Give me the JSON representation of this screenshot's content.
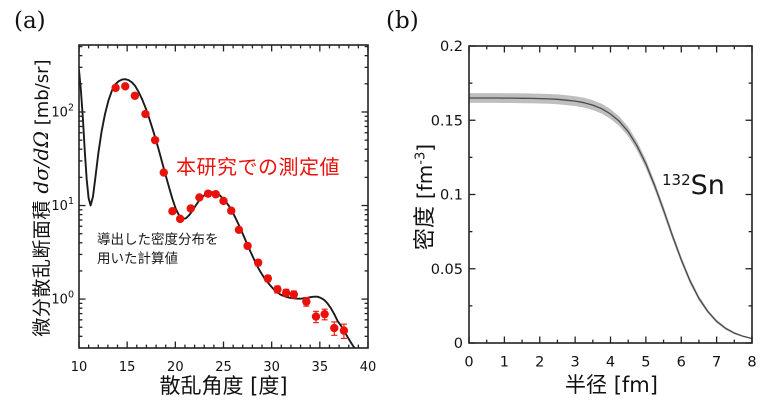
{
  "figure": {
    "panel_a_label": "(a)",
    "panel_b_label": "(b)"
  },
  "panel_a": {
    "ylabel_cjk": "微分散乱断面積 ",
    "ylabel_math": "dσ/dΩ",
    "ylabel_unit": " [mb/sr]",
    "xlabel": "散乱角度 [度]",
    "measured_label": "本研究での測定値",
    "calc_label_line1": "導出した密度分布を",
    "calc_label_line2": "用いた計算値"
  },
  "panel_b": {
    "ylabel_cjk": "密度 ",
    "ylabel_unit_prefix": "[fm",
    "ylabel_unit_sup": "-3",
    "ylabel_unit_suffix": "]",
    "xlabel": "半径 [fm]",
    "nuclide_mass": "132",
    "nuclide_symbol": "Sn"
  },
  "colors": {
    "measured_red": "#e8120b",
    "curve_black": "#1a1a1a",
    "density_line": "#4a4a4a",
    "band_gray": "#b3b3b3",
    "axis": "#222222"
  },
  "chart_data": [
    {
      "type": "line",
      "title": "elastic scattering differential cross section",
      "xlabel": "散乱角度 [度]",
      "ylabel": "微分散乱断面積 dσ/dΩ [mb/sr]",
      "x_scale": "linear",
      "y_scale": "log",
      "xlim": [
        10,
        40
      ],
      "ylim": [
        0.3,
        520
      ],
      "x_ticks": [
        10,
        15,
        20,
        25,
        30,
        35,
        40
      ],
      "x_minor_step": 1,
      "y_tick_exponents": [
        0,
        1,
        2
      ],
      "grid": false,
      "legend": "none",
      "series": [
        {
          "name": "calculation-curve",
          "label": "導出した密度分布を用いた計算値",
          "type": "line",
          "color": "#1a1a1a",
          "x": [
            10,
            10.2,
            10.4,
            10.6,
            10.8,
            11,
            11.2,
            11.45,
            11.7,
            12,
            12.35,
            12.7,
            13.05,
            13.4,
            13.75,
            14.1,
            14.45,
            14.8,
            15.15,
            15.5,
            15.85,
            16.2,
            16.55,
            16.9,
            17.25,
            17.6,
            17.95,
            18.3,
            18.65,
            19,
            19.35,
            19.7,
            20.05,
            20.4,
            20.75,
            21.1,
            21.45,
            21.8,
            22.15,
            22.5,
            22.85,
            23.2,
            23.55,
            23.9,
            24.25,
            24.6,
            24.95,
            25.3,
            25.65,
            26,
            26.35,
            26.7,
            27.05,
            27.4,
            27.75,
            28.1,
            28.45,
            28.8,
            29.15,
            29.5,
            29.85,
            30.2,
            30.55,
            30.9,
            31.25,
            31.6,
            31.95,
            32.3,
            32.65,
            33,
            33.35,
            33.7,
            34.05,
            34.4,
            34.75,
            35.1,
            35.45,
            35.8,
            36.15,
            36.5,
            36.85,
            37.2,
            37.55,
            37.9,
            38.25,
            38.6,
            38.95
          ],
          "y": [
            280,
            170,
            85,
            38,
            19,
            12,
            10,
            12.5,
            20,
            36,
            62,
            95,
            132,
            168,
            196,
            213,
            222,
            224,
            219,
            207,
            188,
            163,
            137,
            111,
            88,
            68,
            51.5,
            38.5,
            28.5,
            21,
            15.6,
            11.8,
            9.2,
            7.8,
            7.2,
            7.3,
            7.9,
            8.9,
            10.1,
            11.4,
            12.5,
            13.3,
            13.8,
            13.9,
            13.6,
            12.9,
            11.9,
            10.8,
            9.6,
            8.3,
            7,
            5.85,
            4.85,
            4,
            3.3,
            2.75,
            2.3,
            1.98,
            1.73,
            1.55,
            1.4,
            1.28,
            1.19,
            1.12,
            1.08,
            1.05,
            1.03,
            1.02,
            1.01,
            1.01,
            1.02,
            1.03,
            1.05,
            1.06,
            1.06,
            1.03,
            0.98,
            0.9,
            0.8,
            0.69,
            0.58,
            0.52,
            0.45,
            0.39,
            0.34,
            0.3,
            0.26
          ]
        },
        {
          "name": "measured-points",
          "label": "本研究での測定値",
          "type": "scatter",
          "color": "#e8120b",
          "x": [
            13.8,
            14.8,
            15.8,
            16.9,
            17.9,
            18.8,
            19.7,
            20.5,
            21.6,
            22.5,
            23.4,
            24.2,
            25,
            25.8,
            26.6,
            27.5,
            28.6,
            29.6,
            30.6,
            31.5,
            32.3,
            33.6,
            34.6,
            35.5,
            36.5,
            37.5
          ],
          "y": [
            181,
            188,
            149,
            95,
            50,
            22.5,
            8.7,
            7.2,
            9.3,
            12.2,
            13.4,
            13.2,
            11.2,
            8.8,
            5.5,
            3.7,
            2.45,
            1.66,
            1.27,
            1.17,
            1.12,
            0.94,
            0.65,
            0.69,
            0.49,
            0.46
          ],
          "yerr": [
            9,
            9,
            7,
            5,
            3,
            1.2,
            0.5,
            0.4,
            0.5,
            0.6,
            0.7,
            0.7,
            0.6,
            0.5,
            0.3,
            0.25,
            0.18,
            0.13,
            0.11,
            0.1,
            0.1,
            0.1,
            0.09,
            0.09,
            0.08,
            0.08
          ]
        }
      ]
    },
    {
      "type": "line",
      "title": "matter density distribution of 132Sn",
      "xlabel": "半径 [fm]",
      "ylabel": "密度 [fm^-3]",
      "x_scale": "linear",
      "y_scale": "linear",
      "xlim": [
        0,
        8
      ],
      "ylim": [
        0,
        0.2
      ],
      "x_ticks": [
        0,
        1,
        2,
        3,
        4,
        5,
        6,
        7,
        8
      ],
      "x_minor_step": 0.5,
      "y_ticks": [
        0,
        0.05,
        0.1,
        0.15,
        0.2
      ],
      "y_tick_labels": [
        "0",
        "0.05",
        "0.1",
        "0.15",
        "0.2"
      ],
      "y_minor_step": 0.025,
      "grid": false,
      "legend": "none",
      "annotation": "132Sn",
      "series": [
        {
          "name": "density-curve",
          "label": "132Sn density",
          "type": "line-with-band",
          "color": "#4a4a4a",
          "band_color": "#b3b3b3",
          "x": [
            0,
            0.25,
            0.5,
            0.75,
            1,
            1.25,
            1.5,
            1.75,
            2,
            2.25,
            2.5,
            2.75,
            3,
            3.25,
            3.5,
            3.75,
            4,
            4.25,
            4.5,
            4.75,
            5,
            5.25,
            5.5,
            5.75,
            6,
            6.25,
            6.5,
            6.75,
            7,
            7.25,
            7.5,
            7.75,
            8
          ],
          "y": [
            0.165,
            0.165,
            0.165,
            0.165,
            0.1649,
            0.1649,
            0.1648,
            0.1647,
            0.1646,
            0.1644,
            0.1641,
            0.1635,
            0.1629,
            0.1618,
            0.1602,
            0.1578,
            0.1542,
            0.1493,
            0.1423,
            0.1328,
            0.1206,
            0.1059,
            0.0894,
            0.0723,
            0.056,
            0.0417,
            0.0301,
            0.0212,
            0.0146,
            0.0099,
            0.0067,
            0.0045,
            0.003
          ],
          "band": [
            0.0033,
            0.0033,
            0.0033,
            0.0033,
            0.0033,
            0.0033,
            0.0033,
            0.0033,
            0.0033,
            0.0033,
            0.0033,
            0.0033,
            0.0033,
            0.0033,
            0.0033,
            0.0033,
            0.0033,
            0.0032,
            0.0032,
            0.0031,
            0.003,
            0.0028,
            0.0027,
            0.0024,
            0.0022,
            0.0019,
            0.0016,
            0.0013,
            0.0011,
            0.0009,
            0.0007,
            0.0005,
            0.0004
          ]
        }
      ]
    }
  ]
}
